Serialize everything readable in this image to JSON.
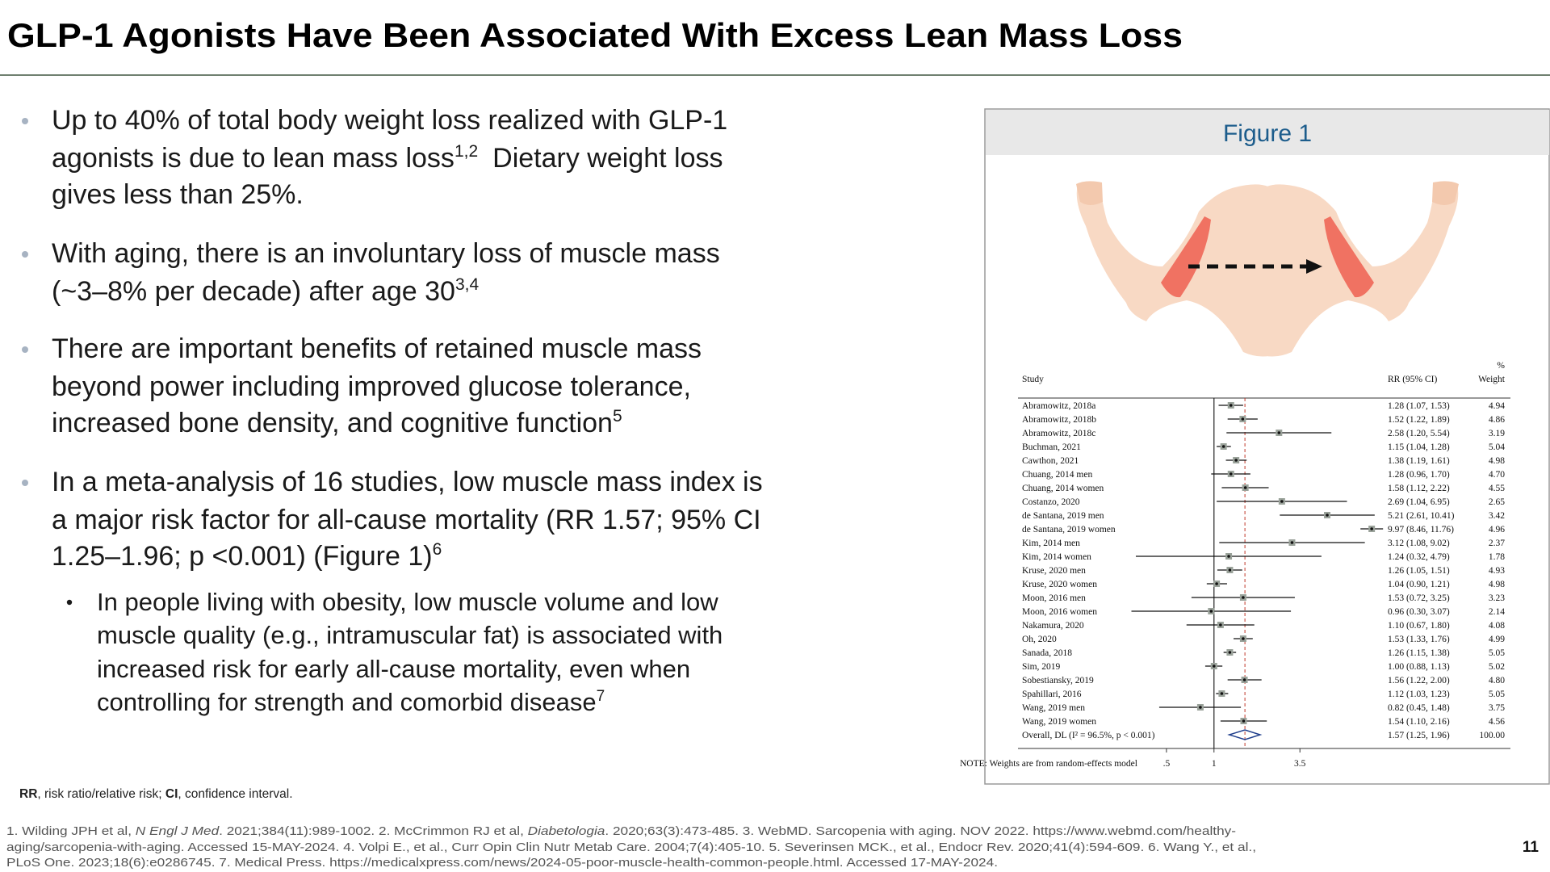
{
  "header": {
    "title": "GLP-1 Agonists Have Been Associated With Excess Lean Mass Loss"
  },
  "bullets": [
    [
      "Up to 40% of total body weight loss realized with GLP-1",
      "agonists is due to lean mass loss",
      "1,2",
      "Dietary weight loss",
      "gives less than 25%."
    ],
    [
      "With aging, there is an involuntary loss of muscle mass",
      "(~3–8% per decade) after age 30",
      "3,4"
    ],
    [
      "There are important benefits of retained muscle mass",
      "beyond power including improved glucose tolerance,",
      "increased bone density, and cognitive function",
      "5"
    ],
    [
      "In a meta-analysis of 16 studies, low muscle mass index is",
      "a major risk factor for all-cause mortality (RR 1.57; 95% CI",
      "1.25–1.96; p <0.001) (Figure 1)",
      "6"
    ]
  ],
  "sub_bullet": [
    "In people living with obesity, low muscle volume and low",
    "muscle quality (e.g., intramuscular fat) is associated with",
    "increased risk for early all-cause mortality, even when",
    "controlling for strength and comorbid disease",
    "7"
  ],
  "abbreviations": [
    "RR",
    ", risk ratio/relative risk; ",
    "CI",
    ", confidence interval."
  ],
  "references": [
    [
      "1. Wilding JPH et al, ",
      "N Engl J Med",
      ". 2021;384(11):989-1002. 2. McCrimmon RJ et al, ",
      "Diabetologia",
      ". 2020;63(3):473-485. 3. WebMD. Sarcopenia with aging. NOV 2022. https://www.webmd.com/healthy-"
    ],
    [
      "aging/sarcopenia-with-aging. Accessed 15-MAY-2024. 4. Volpi E., et al., Curr Opin Clin Nutr Metab Care. 2004;7(4):405-10. 5. Severinsen MCK., et al., Endocr Rev. 2020;41(4):594-609. 6. Wang Y., et al.,"
    ],
    [
      "PLoS One. 2023;18(6):e0286745. 7. Medical Press. https://medicalxpress.com/news/2024-05-poor-muscle-health-common-people.html. Accessed 17-MAY-2024."
    ]
  ],
  "page_number": "11",
  "figure": {
    "title": "Figure 1",
    "chart_data": {
      "type": "forest",
      "col_study": "Study",
      "col_rr": "RR (95% CI)",
      "col_pct": "%",
      "col_weight": "Weight",
      "note": "NOTE: Weights are from random-effects model",
      "log_x": true,
      "xlim": [
        0.25,
        14
      ],
      "xticks": [
        {
          "value": 0.5,
          "label": ".5"
        },
        1,
        3.5
      ],
      "studies": [
        {
          "name": "Abramowitz, 2018a",
          "rr": 1.28,
          "lo": 1.07,
          "hi": 1.53,
          "label": "1.28 (1.07, 1.53)",
          "weight": "4.94"
        },
        {
          "name": "Abramowitz, 2018b",
          "rr": 1.52,
          "lo": 1.22,
          "hi": 1.89,
          "label": "1.52 (1.22, 1.89)",
          "weight": "4.86"
        },
        {
          "name": "Abramowitz, 2018c",
          "rr": 2.58,
          "lo": 1.2,
          "hi": 5.54,
          "label": "2.58 (1.20, 5.54)",
          "weight": "3.19"
        },
        {
          "name": "Buchman, 2021",
          "rr": 1.15,
          "lo": 1.04,
          "hi": 1.28,
          "label": "1.15 (1.04, 1.28)",
          "weight": "5.04"
        },
        {
          "name": "Cawthon, 2021",
          "rr": 1.38,
          "lo": 1.19,
          "hi": 1.61,
          "label": "1.38 (1.19, 1.61)",
          "weight": "4.98"
        },
        {
          "name": "Chuang, 2014 men",
          "rr": 1.28,
          "lo": 0.96,
          "hi": 1.7,
          "label": "1.28 (0.96, 1.70)",
          "weight": "4.70"
        },
        {
          "name": "Chuang, 2014 women",
          "rr": 1.58,
          "lo": 1.12,
          "hi": 2.22,
          "label": "1.58 (1.12, 2.22)",
          "weight": "4.55"
        },
        {
          "name": "Costanzo, 2020",
          "rr": 2.69,
          "lo": 1.04,
          "hi": 6.95,
          "label": "2.69 (1.04, 6.95)",
          "weight": "2.65"
        },
        {
          "name": "de Santana, 2019 men",
          "rr": 5.21,
          "lo": 2.61,
          "hi": 10.41,
          "label": "5.21 (2.61, 10.41)",
          "weight": "3.42"
        },
        {
          "name": "de Santana, 2019 women",
          "rr": 9.97,
          "lo": 8.46,
          "hi": 11.76,
          "label": "9.97 (8.46, 11.76)",
          "weight": "4.96"
        },
        {
          "name": "Kim, 2014 men",
          "rr": 3.12,
          "lo": 1.08,
          "hi": 9.02,
          "label": "3.12 (1.08, 9.02)",
          "weight": "2.37"
        },
        {
          "name": "Kim, 2014 women",
          "rr": 1.24,
          "lo": 0.32,
          "hi": 4.79,
          "label": "1.24 (0.32, 4.79)",
          "weight": "1.78"
        },
        {
          "name": "Kruse, 2020 men",
          "rr": 1.26,
          "lo": 1.05,
          "hi": 1.51,
          "label": "1.26 (1.05, 1.51)",
          "weight": "4.93"
        },
        {
          "name": "Kruse, 2020 women",
          "rr": 1.04,
          "lo": 0.9,
          "hi": 1.21,
          "label": "1.04 (0.90, 1.21)",
          "weight": "4.98"
        },
        {
          "name": "Moon, 2016 men",
          "rr": 1.53,
          "lo": 0.72,
          "hi": 3.25,
          "label": "1.53 (0.72, 3.25)",
          "weight": "3.23"
        },
        {
          "name": "Moon, 2016 women",
          "rr": 0.96,
          "lo": 0.3,
          "hi": 3.07,
          "label": "0.96 (0.30, 3.07)",
          "weight": "2.14"
        },
        {
          "name": "Nakamura, 2020",
          "rr": 1.1,
          "lo": 0.67,
          "hi": 1.8,
          "label": "1.10 (0.67, 1.80)",
          "weight": "4.08"
        },
        {
          "name": "Oh, 2020",
          "rr": 1.53,
          "lo": 1.33,
          "hi": 1.76,
          "label": "1.53 (1.33, 1.76)",
          "weight": "4.99"
        },
        {
          "name": "Sanada, 2018",
          "rr": 1.26,
          "lo": 1.15,
          "hi": 1.38,
          "label": "1.26 (1.15, 1.38)",
          "weight": "5.05"
        },
        {
          "name": "Sim, 2019",
          "rr": 1.0,
          "lo": 0.88,
          "hi": 1.13,
          "label": "1.00 (0.88, 1.13)",
          "weight": "5.02"
        },
        {
          "name": "Sobestiansky, 2019",
          "rr": 1.56,
          "lo": 1.22,
          "hi": 2.0,
          "label": "1.56 (1.22, 2.00)",
          "weight": "4.80"
        },
        {
          "name": "Spahillari, 2016",
          "rr": 1.12,
          "lo": 1.03,
          "hi": 1.23,
          "label": "1.12 (1.03, 1.23)",
          "weight": "5.05"
        },
        {
          "name": "Wang, 2019 men",
          "rr": 0.82,
          "lo": 0.45,
          "hi": 1.48,
          "label": "0.82 (0.45, 1.48)",
          "weight": "3.75"
        },
        {
          "name": "Wang, 2019 women",
          "rr": 1.54,
          "lo": 1.1,
          "hi": 2.16,
          "label": "1.54 (1.10, 2.16)",
          "weight": "4.56"
        }
      ],
      "overall": {
        "name": "Overall, DL (I² = 96.5%, p < 0.001)",
        "rr": 1.57,
        "lo": 1.25,
        "hi": 1.96,
        "label": "1.57 (1.25, 1.96)",
        "weight": "100.00"
      }
    }
  }
}
